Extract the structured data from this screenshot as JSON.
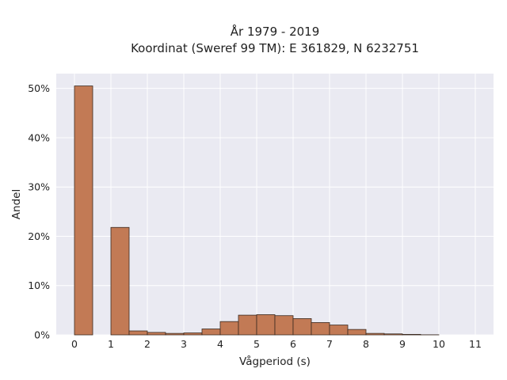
{
  "chart_data": {
    "type": "bar",
    "title": "År 1979 - 2019",
    "subtitle": "Koordinat (Sweref 99 TM): E 361829, N 6232751",
    "xlabel": "Vågperiod (s)",
    "ylabel": "Andel",
    "xlim": [
      -0.5,
      11.5
    ],
    "ylim": [
      0,
      53
    ],
    "x_ticks": [
      0,
      1,
      2,
      3,
      4,
      5,
      6,
      7,
      8,
      9,
      10,
      11
    ],
    "y_ticks": [
      0,
      10,
      20,
      30,
      40,
      50
    ],
    "y_tick_labels": [
      "0%",
      "10%",
      "20%",
      "30%",
      "40%",
      "50%"
    ],
    "bin_width": 0.5,
    "bins": [
      0,
      0.5,
      1,
      1.5,
      2,
      2.5,
      3,
      3.5,
      4,
      4.5,
      5,
      5.5,
      6,
      6.5,
      7,
      7.5,
      8,
      8.5,
      9,
      9.5,
      10,
      10.5,
      11
    ],
    "values": [
      50.5,
      0,
      21.8,
      0.8,
      0.5,
      0.3,
      0.4,
      1.2,
      2.7,
      4.0,
      4.1,
      3.9,
      3.3,
      2.5,
      2.0,
      1.1,
      0.3,
      0.2,
      0.1,
      0.02,
      0,
      0,
      0
    ],
    "grid": true,
    "colors": {
      "bar_fill": "#c27a55",
      "bar_stroke": "#3a2a20",
      "plot_bg": "#eaeaf2",
      "grid": "#ffffff"
    }
  }
}
